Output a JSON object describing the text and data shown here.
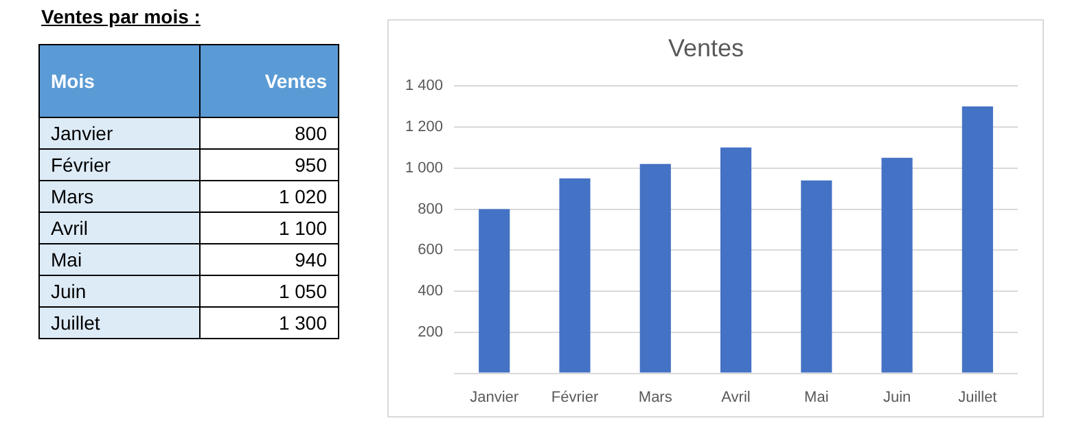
{
  "chart_data": [
    {
      "type": "other",
      "title": "Ventes par mois :",
      "annotations": [
        "Mois",
        "Ventes",
        "Janvier",
        "800",
        "Février",
        "950",
        "Mars",
        "1 020",
        "Avril",
        "1 100",
        "Mai",
        "940",
        "Juin",
        "1 050",
        "Juillet",
        "1 300"
      ]
    },
    {
      "type": "bar",
      "title": "Ventes",
      "categories": [
        "Janvier",
        "Février",
        "Mars",
        "Avril",
        "Mai",
        "Juin",
        "Juillet"
      ],
      "values": [
        800,
        950,
        1020,
        1100,
        940,
        1050,
        1300
      ],
      "color": "#4472c4",
      "ylim": [
        0,
        1400
      ],
      "yticks": [
        {
          "value": 0,
          "label": null
        },
        200,
        400,
        600,
        800,
        1000,
        1200,
        1400
      ],
      "grid": "y",
      "legend": false
    }
  ]
}
